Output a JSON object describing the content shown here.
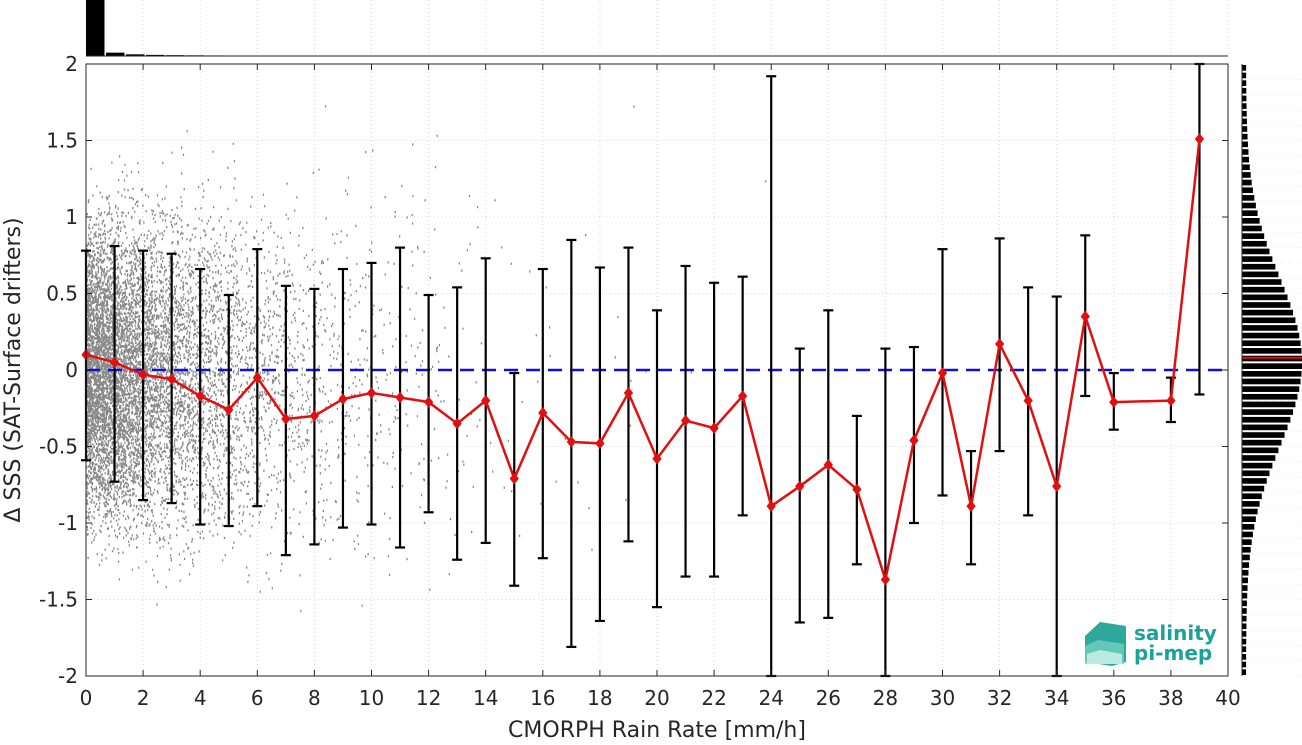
{
  "chart_data": {
    "type": "scatter",
    "xlabel": "CMORPH Rain Rate [mm/h]",
    "ylabel": "Δ SSS (SAT-Surface drifters)",
    "xlim": [
      0,
      40
    ],
    "ylim": [
      -2,
      2
    ],
    "xticks": [
      "0",
      "2",
      "4",
      "6",
      "8",
      "10",
      "12",
      "14",
      "16",
      "18",
      "20",
      "22",
      "24",
      "26",
      "28",
      "30",
      "32",
      "34",
      "36",
      "38",
      "40"
    ],
    "yticks": [
      "2",
      "1.5",
      "1",
      "0.5",
      "0",
      "-0.5",
      "-1",
      "-1.5",
      "-2"
    ],
    "grid": true,
    "reference_line": {
      "y": 0,
      "style": "dashed",
      "color": "#1010d8"
    },
    "series": [
      {
        "type": "line-with-errorbars",
        "color": "#e01010",
        "marker": "diamond",
        "x": [
          0,
          1,
          2,
          3,
          4,
          5,
          6,
          7,
          8,
          9,
          10,
          11,
          12,
          13,
          14,
          15,
          16,
          17,
          18,
          19,
          20,
          21,
          22,
          23,
          24,
          25,
          26,
          27,
          28,
          29,
          30,
          31,
          32,
          33,
          34,
          35,
          36,
          38,
          39
        ],
        "y": [
          0.1,
          0.05,
          -0.03,
          -0.06,
          -0.17,
          -0.26,
          -0.05,
          -0.32,
          -0.3,
          -0.19,
          -0.15,
          -0.18,
          -0.21,
          -0.35,
          -0.2,
          -0.71,
          -0.28,
          -0.47,
          -0.48,
          -0.15,
          -0.58,
          -0.33,
          -0.38,
          -0.17,
          -0.89,
          -0.76,
          -0.62,
          -0.78,
          -1.37,
          -0.46,
          -0.02,
          -0.89,
          0.17,
          -0.2,
          -0.76,
          0.35,
          -0.21,
          -0.2,
          1.51
        ],
        "err_low": [
          -0.59,
          -0.73,
          -0.85,
          -0.87,
          -1.01,
          -1.02,
          -0.89,
          -1.21,
          -1.14,
          -1.03,
          -1.01,
          -1.16,
          -0.93,
          -1.24,
          -1.13,
          -1.41,
          -1.23,
          -1.81,
          -1.64,
          -1.12,
          -1.55,
          -1.35,
          -1.35,
          -0.95,
          -2.0,
          -1.65,
          -1.62,
          -1.27,
          -2.0,
          -1.0,
          -0.82,
          -1.27,
          -0.53,
          -0.95,
          -2.0,
          -0.17,
          -0.39,
          -0.34,
          -0.16
        ],
        "err_high": [
          0.78,
          0.81,
          0.78,
          0.76,
          0.66,
          0.49,
          0.79,
          0.55,
          0.53,
          0.66,
          0.7,
          0.8,
          0.49,
          0.54,
          0.73,
          -0.02,
          0.66,
          0.85,
          0.67,
          0.8,
          0.39,
          0.68,
          0.57,
          0.61,
          1.92,
          0.14,
          0.39,
          -0.3,
          0.14,
          0.15,
          0.79,
          -0.53,
          0.86,
          0.54,
          0.48,
          0.88,
          -0.02,
          -0.05,
          2.0
        ]
      }
    ],
    "marginal_histograms": {
      "top": {
        "color": "#000000",
        "description_values": [
          1.0,
          0.06,
          0.03,
          0.02,
          0.015,
          0.012,
          0.01,
          0.008,
          0.006
        ]
      },
      "right": {
        "color": "#000000",
        "median_line_color": "#e01010",
        "median_y": 0.08
      }
    },
    "scatter_color": "#888888"
  },
  "logo": {
    "line1": "salinity",
    "line2": "pi-mep",
    "color": "#1aa39b"
  }
}
